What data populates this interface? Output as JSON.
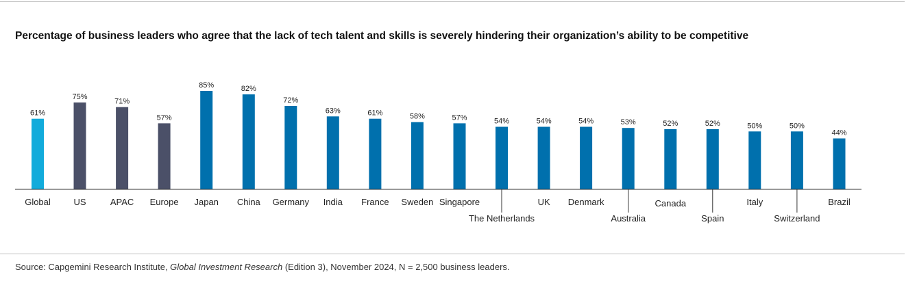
{
  "chart_data": {
    "type": "bar",
    "title": "Percentage of business leaders who agree that the lack of tech talent and skills is severely hindering their organization’s ability to be competitive",
    "xlabel": "",
    "ylabel": "",
    "ylim": [
      0,
      85
    ],
    "grid": false,
    "legend": "none",
    "value_suffix": "%",
    "categories": [
      "Global",
      "US",
      "APAC",
      "Europe",
      "Japan",
      "China",
      "Germany",
      "India",
      "France",
      "Sweden",
      "Singapore",
      "The Netherlands",
      "UK",
      "Denmark",
      "Australia",
      "Canada",
      "Spain",
      "Italy",
      "Switzerland",
      "Brazil"
    ],
    "values": [
      61,
      75,
      71,
      57,
      85,
      82,
      72,
      63,
      61,
      58,
      57,
      54,
      54,
      54,
      53,
      52,
      52,
      50,
      50,
      44
    ],
    "value_labels": [
      "61%",
      "75%",
      "71%",
      "57%",
      "85%",
      "82%",
      "72%",
      "63%",
      "61%",
      "58%",
      "57%",
      "54%",
      "54%",
      "54%",
      "53%",
      "52%",
      "52%",
      "50%",
      "50%",
      "44%"
    ],
    "bar_groups": [
      "global",
      "region",
      "region",
      "region",
      "country",
      "country",
      "country",
      "country",
      "country",
      "country",
      "country",
      "country",
      "country",
      "country",
      "country",
      "country",
      "country",
      "country",
      "country",
      "country"
    ],
    "label_rows": [
      0,
      0,
      0,
      0,
      0,
      0,
      0,
      0,
      0,
      0,
      0,
      1,
      0,
      0,
      1,
      0.08,
      1,
      0,
      1,
      0
    ],
    "colors": {
      "global": "#12abdb",
      "region": "#4b5068",
      "country": "#0070ad",
      "axis": "#333333",
      "leader": "#333333"
    }
  },
  "source": {
    "prefix": "Source: Capgemini Research Institute, ",
    "publication": "Global Investment Research",
    "suffix": " (Edition 3), November 2024, N = 2,500 business leaders."
  }
}
